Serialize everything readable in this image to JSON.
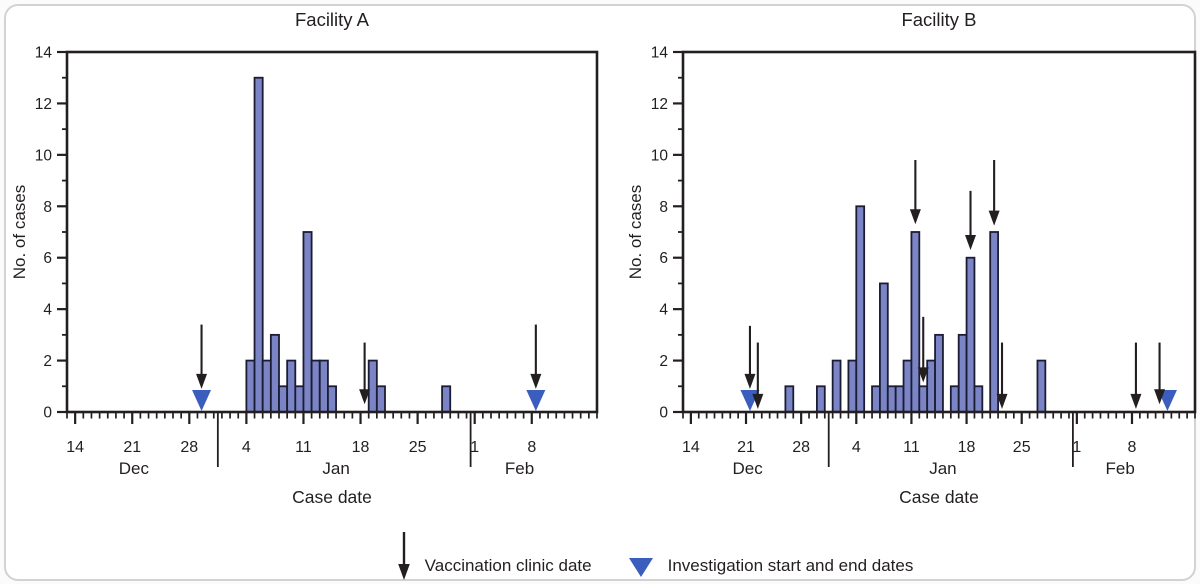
{
  "figure": {
    "legend": {
      "arrow_label": "Vaccination clinic date",
      "triangle_label": "Investigation start and end dates"
    },
    "colors": {
      "bar_fill": "#7B85C6",
      "bar_stroke": "#1B1C34",
      "axis": "#231F20",
      "triangle": "#3B5EBE",
      "card_border": "#D2D2D2"
    }
  },
  "chart_data": [
    {
      "type": "bar",
      "title": "Facility A",
      "xlabel": "Case date",
      "ylabel": "No. of cases",
      "ylim": [
        0,
        14
      ],
      "y_major_tick_step": 2,
      "grid": false,
      "x_months": [
        {
          "name": "Dec",
          "first_day": 13,
          "last_day": 31
        },
        {
          "name": "Jan",
          "first_day": 1,
          "last_day": 31
        },
        {
          "name": "Feb",
          "first_day": 1,
          "last_day": 15
        }
      ],
      "x_labeled_ticks": [
        "Dec 14",
        "Dec 21",
        "Dec 28",
        "Jan 4",
        "Jan 11",
        "Jan 18",
        "Jan 25",
        "Feb 1",
        "Feb 8"
      ],
      "cases": [
        [
          "Jan 4",
          2
        ],
        [
          "Jan 5",
          13
        ],
        [
          "Jan 6",
          2
        ],
        [
          "Jan 7",
          3
        ],
        [
          "Jan 8",
          1
        ],
        [
          "Jan 9",
          2
        ],
        [
          "Jan 10",
          1
        ],
        [
          "Jan 11",
          7
        ],
        [
          "Jan 12",
          2
        ],
        [
          "Jan 13",
          2
        ],
        [
          "Jan 14",
          1
        ],
        [
          "Jan 19",
          2
        ],
        [
          "Jan 20",
          1
        ],
        [
          "Jan 28",
          1
        ]
      ],
      "vaccination_arrows": [
        {
          "date": "Dec 29",
          "from": 3.4,
          "to": 0.9
        },
        {
          "date": "Jan 18",
          "from": 2.7,
          "to": 0.3
        },
        {
          "date": "Feb 8",
          "from": 3.4,
          "to": 0.9
        }
      ],
      "investigation_markers": [
        "Dec 29",
        "Feb 8"
      ]
    },
    {
      "type": "bar",
      "title": "Facility B",
      "xlabel": "Case date",
      "ylabel": "No. of cases",
      "ylim": [
        0,
        14
      ],
      "y_major_tick_step": 2,
      "grid": false,
      "x_months": [
        {
          "name": "Dec",
          "first_day": 13,
          "last_day": 31
        },
        {
          "name": "Jan",
          "first_day": 1,
          "last_day": 31
        },
        {
          "name": "Feb",
          "first_day": 1,
          "last_day": 15
        }
      ],
      "x_labeled_ticks": [
        "Dec 14",
        "Dec 21",
        "Dec 28",
        "Jan 4",
        "Jan 11",
        "Jan 18",
        "Jan 25",
        "Feb 1",
        "Feb 8"
      ],
      "cases": [
        [
          "Dec 26",
          1
        ],
        [
          "Dec 30",
          1
        ],
        [
          "Jan 1",
          2
        ],
        [
          "Jan 3",
          2
        ],
        [
          "Jan 4",
          8
        ],
        [
          "Jan 6",
          1
        ],
        [
          "Jan 7",
          5
        ],
        [
          "Jan 8",
          1
        ],
        [
          "Jan 9",
          1
        ],
        [
          "Jan 10",
          2
        ],
        [
          "Jan 11",
          7
        ],
        [
          "Jan 12",
          1
        ],
        [
          "Jan 13",
          2
        ],
        [
          "Jan 14",
          3
        ],
        [
          "Jan 16",
          1
        ],
        [
          "Jan 17",
          3
        ],
        [
          "Jan 18",
          6
        ],
        [
          "Jan 19",
          1
        ],
        [
          "Jan 21",
          7
        ],
        [
          "Jan 27",
          2
        ]
      ],
      "vaccination_arrows": [
        {
          "date": "Dec 21",
          "from": 3.35,
          "to": 0.9
        },
        {
          "date": "Dec 22",
          "from": 2.7,
          "to": 0.12
        },
        {
          "date": "Jan 11",
          "from": 9.8,
          "to": 7.3
        },
        {
          "date": "Jan 12",
          "from": 3.7,
          "to": 1.15
        },
        {
          "date": "Jan 18",
          "from": 8.6,
          "to": 6.3
        },
        {
          "date": "Jan 21",
          "from": 9.8,
          "to": 7.25
        },
        {
          "date": "Jan 22",
          "from": 2.7,
          "to": 0.12
        },
        {
          "date": "Feb 8",
          "from": 2.7,
          "to": 0.12
        },
        {
          "date": "Feb 11",
          "from": 2.7,
          "to": 0.3
        }
      ],
      "investigation_markers": [
        "Dec 21",
        "Feb 12"
      ]
    }
  ]
}
